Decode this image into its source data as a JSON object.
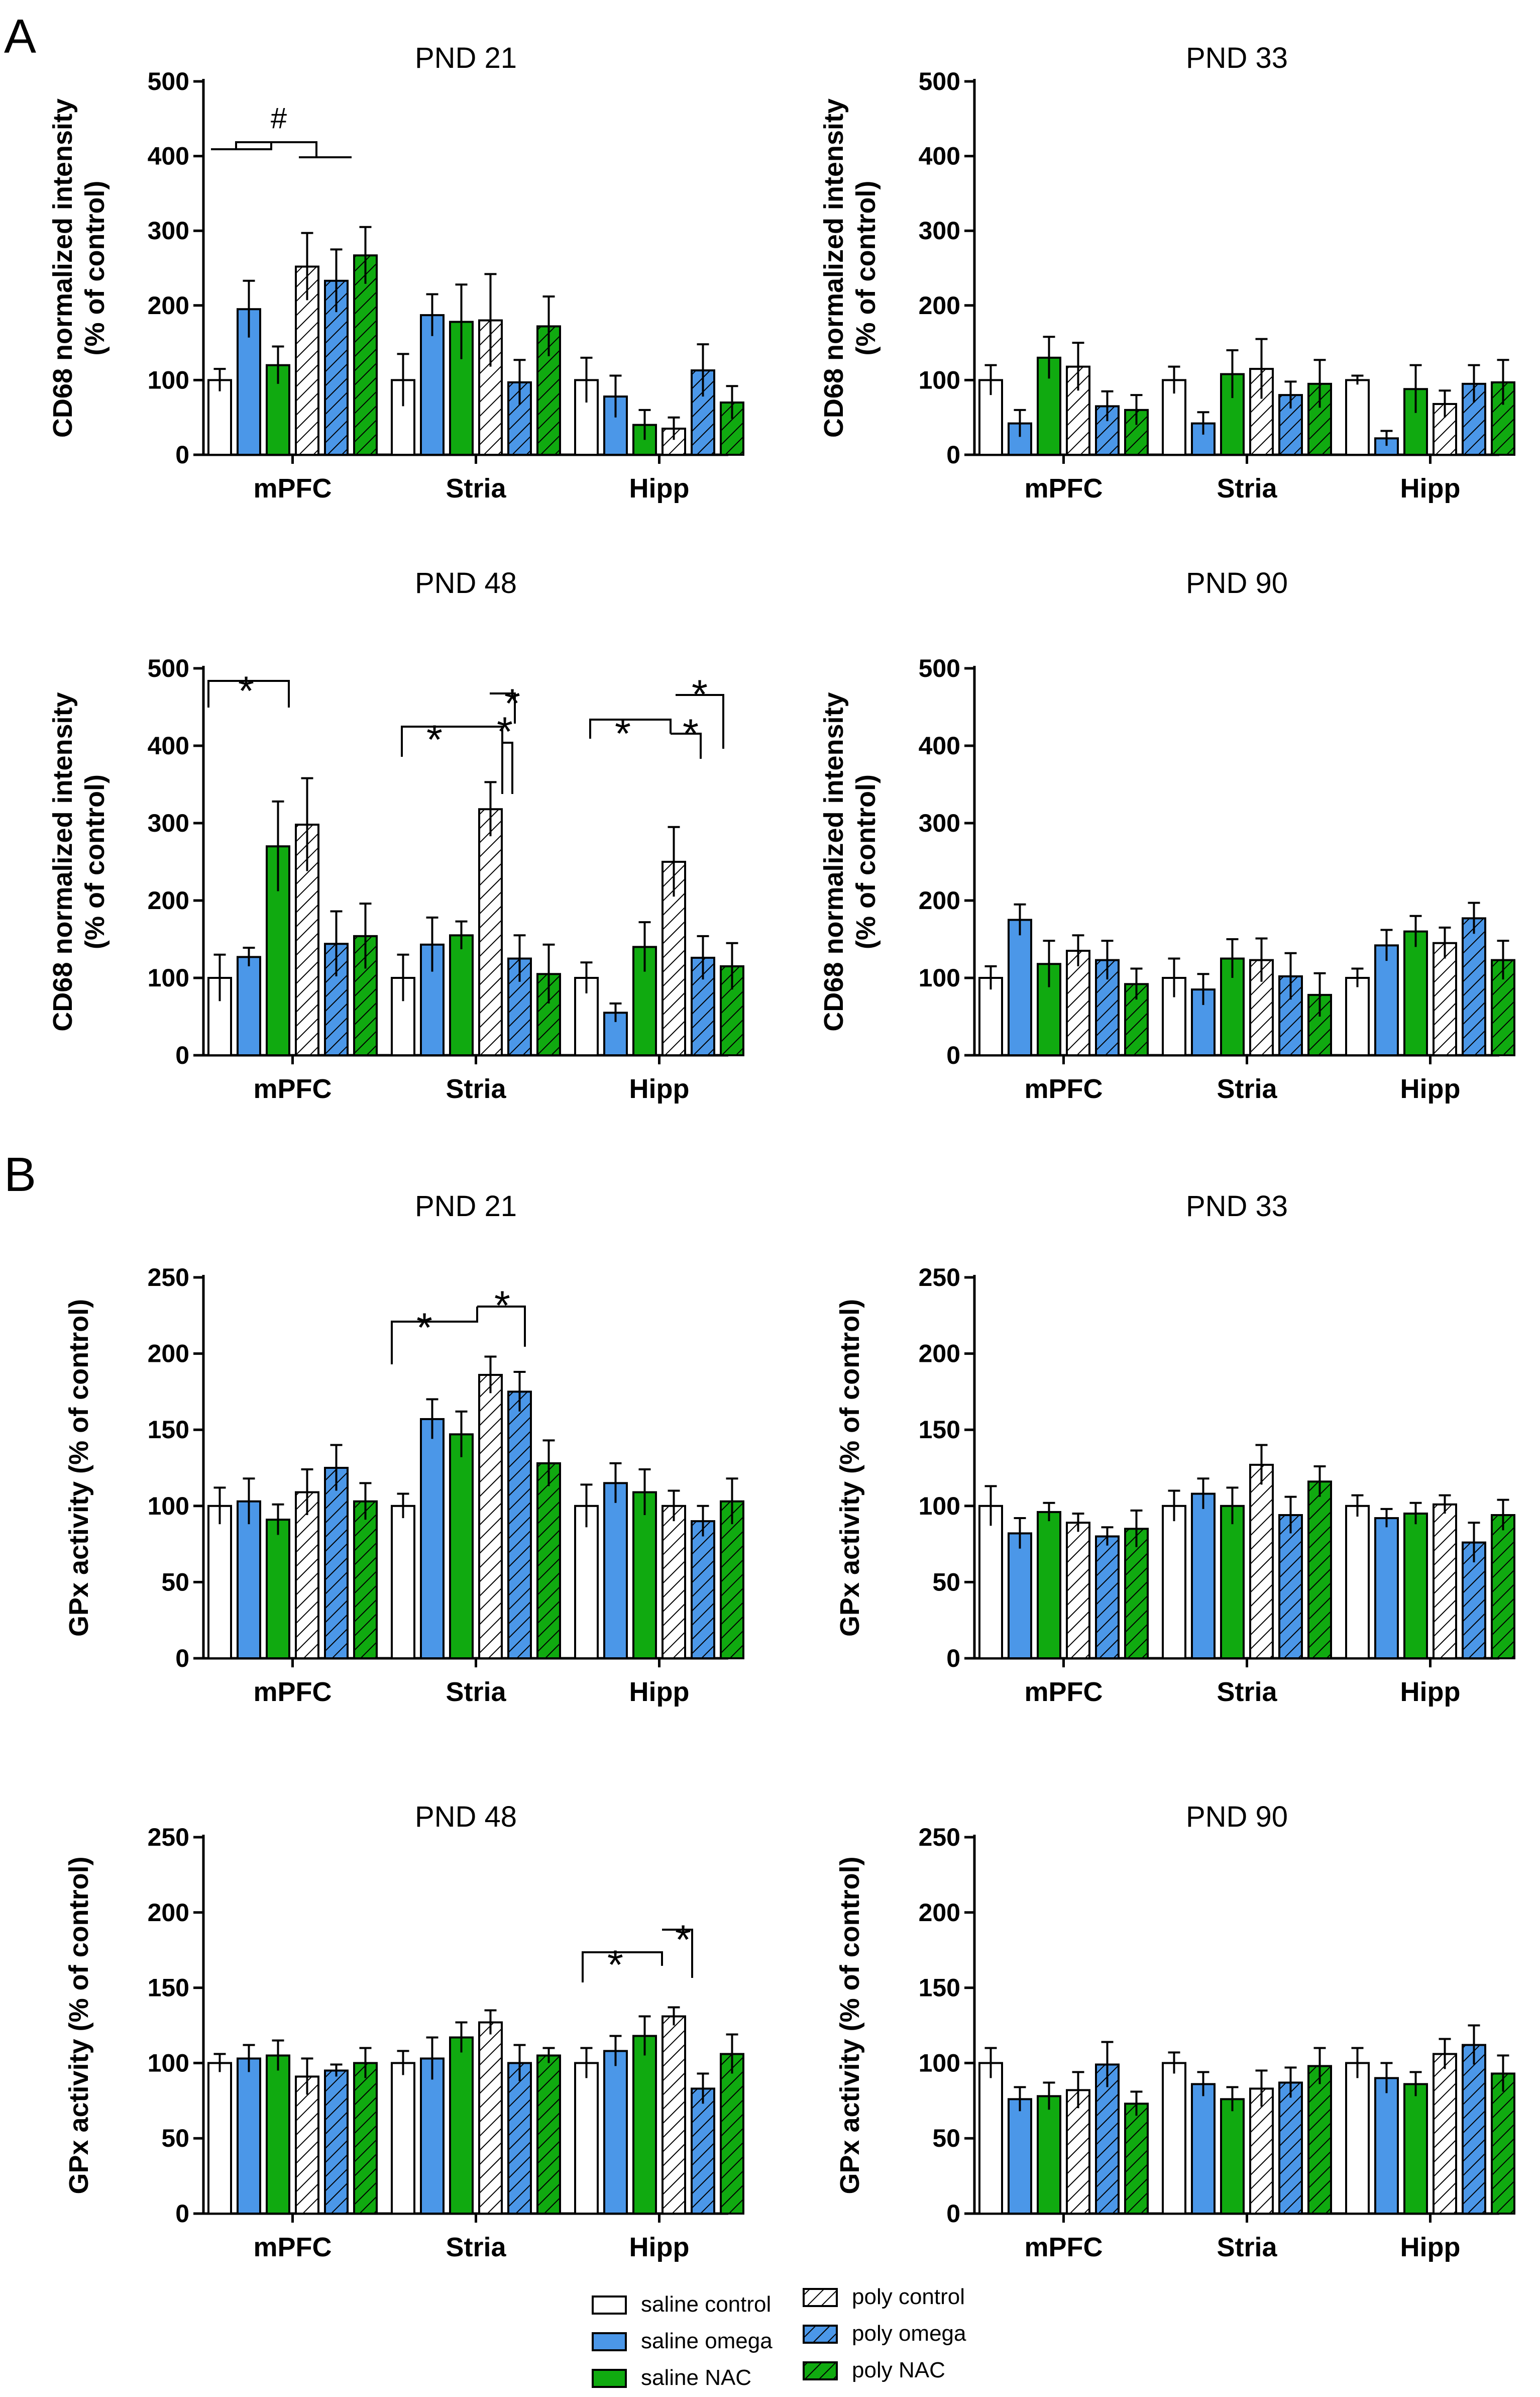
{
  "figure": {
    "panel_labels": [
      "A",
      "B"
    ],
    "legend": [
      {
        "name": "saline control",
        "fill": "#ffffff",
        "hatch": false
      },
      {
        "name": "saline omega",
        "fill": "#4b97e8",
        "hatch": false
      },
      {
        "name": "saline NAC",
        "fill": "#10aa10",
        "hatch": false
      },
      {
        "name": "poly control",
        "fill": "#ffffff",
        "hatch": true
      },
      {
        "name": "poly omega",
        "fill": "#4b97e8",
        "hatch": true
      },
      {
        "name": "poly NAC",
        "fill": "#10aa10",
        "hatch": true
      }
    ],
    "colors": {
      "blue": "#4b97e8",
      "green": "#10aa10",
      "white": "#ffffff",
      "stroke": "#000000"
    }
  },
  "chart_data": [
    {
      "type": "bar",
      "section": "A",
      "title": "PND 21",
      "ylabel": [
        "CD68 normalized intensity",
        "(% of control)"
      ],
      "ylim": [
        0,
        500
      ],
      "yticks": [
        0,
        100,
        200,
        300,
        400,
        500
      ],
      "categories": [
        "mPFC",
        "Stria",
        "Hipp"
      ],
      "series": [
        {
          "name": "saline control",
          "values": [
            100,
            100,
            100
          ],
          "errors": [
            15,
            35,
            30
          ]
        },
        {
          "name": "saline omega",
          "values": [
            195,
            187,
            78
          ],
          "errors": [
            38,
            28,
            28
          ]
        },
        {
          "name": "saline NAC",
          "values": [
            120,
            178,
            40
          ],
          "errors": [
            25,
            50,
            20
          ]
        },
        {
          "name": "poly control",
          "values": [
            252,
            180,
            35
          ],
          "errors": [
            45,
            62,
            15
          ]
        },
        {
          "name": "poly omega",
          "values": [
            233,
            97,
            113
          ],
          "errors": [
            42,
            30,
            35
          ]
        },
        {
          "name": "poly NAC",
          "values": [
            267,
            172,
            70
          ],
          "errors": [
            38,
            40,
            22
          ]
        }
      ],
      "annotations": [
        {
          "label": "#",
          "category": "mPFC"
        }
      ]
    },
    {
      "type": "bar",
      "section": "A",
      "title": "PND 33",
      "ylabel": [
        "CD68 normalized intensity",
        "(% of control)"
      ],
      "ylim": [
        0,
        500
      ],
      "yticks": [
        0,
        100,
        200,
        300,
        400,
        500
      ],
      "categories": [
        "mPFC",
        "Stria",
        "Hipp"
      ],
      "series": [
        {
          "name": "saline control",
          "values": [
            100,
            100,
            100
          ],
          "errors": [
            20,
            18,
            6
          ]
        },
        {
          "name": "saline omega",
          "values": [
            42,
            42,
            22
          ],
          "errors": [
            18,
            15,
            10
          ]
        },
        {
          "name": "saline NAC",
          "values": [
            130,
            108,
            88
          ],
          "errors": [
            28,
            32,
            32
          ]
        },
        {
          "name": "poly control",
          "values": [
            118,
            115,
            68
          ],
          "errors": [
            32,
            40,
            18
          ]
        },
        {
          "name": "poly omega",
          "values": [
            65,
            80,
            95
          ],
          "errors": [
            20,
            18,
            25
          ]
        },
        {
          "name": "poly NAC",
          "values": [
            60,
            95,
            97
          ],
          "errors": [
            20,
            32,
            30
          ]
        }
      ]
    },
    {
      "type": "bar",
      "section": "A",
      "title": "PND 48",
      "ylabel": [
        "CD68 normalized intensity",
        "(% of control)"
      ],
      "ylim": [
        0,
        500
      ],
      "yticks": [
        0,
        100,
        200,
        300,
        400,
        500
      ],
      "categories": [
        "mPFC",
        "Stria",
        "Hipp"
      ],
      "series": [
        {
          "name": "saline control",
          "values": [
            100,
            100,
            100
          ],
          "errors": [
            30,
            30,
            20
          ]
        },
        {
          "name": "saline omega",
          "values": [
            127,
            143,
            55
          ],
          "errors": [
            12,
            35,
            12
          ]
        },
        {
          "name": "saline NAC",
          "values": [
            270,
            155,
            140
          ],
          "errors": [
            58,
            18,
            32
          ]
        },
        {
          "name": "poly control",
          "values": [
            298,
            318,
            250
          ],
          "errors": [
            60,
            35,
            45
          ]
        },
        {
          "name": "poly omega",
          "values": [
            144,
            125,
            126
          ],
          "errors": [
            42,
            30,
            28
          ]
        },
        {
          "name": "poly NAC",
          "values": [
            154,
            105,
            115
          ],
          "errors": [
            42,
            38,
            30
          ]
        }
      ],
      "annotations": [
        {
          "label": "*",
          "category": "mPFC"
        },
        {
          "label": "*",
          "category": "Stria"
        },
        {
          "label": "*",
          "category": "Stria"
        },
        {
          "label": "*",
          "category": "Stria"
        },
        {
          "label": "*",
          "category": "Hipp"
        },
        {
          "label": "*",
          "category": "Hipp"
        },
        {
          "label": "*",
          "category": "Hipp"
        }
      ]
    },
    {
      "type": "bar",
      "section": "A",
      "title": "PND 90",
      "ylabel": [
        "CD68 normalized intensity",
        "(% of control)"
      ],
      "ylim": [
        0,
        500
      ],
      "yticks": [
        0,
        100,
        200,
        300,
        400,
        500
      ],
      "categories": [
        "mPFC",
        "Stria",
        "Hipp"
      ],
      "series": [
        {
          "name": "saline control",
          "values": [
            100,
            100,
            100
          ],
          "errors": [
            15,
            25,
            12
          ]
        },
        {
          "name": "saline omega",
          "values": [
            175,
            85,
            142
          ],
          "errors": [
            20,
            20,
            20
          ]
        },
        {
          "name": "saline NAC",
          "values": [
            118,
            125,
            160
          ],
          "errors": [
            30,
            25,
            20
          ]
        },
        {
          "name": "poly control",
          "values": [
            135,
            123,
            145
          ],
          "errors": [
            20,
            28,
            20
          ]
        },
        {
          "name": "poly omega",
          "values": [
            123,
            102,
            177
          ],
          "errors": [
            25,
            30,
            20
          ]
        },
        {
          "name": "poly NAC",
          "values": [
            92,
            78,
            123
          ],
          "errors": [
            20,
            28,
            25
          ]
        }
      ]
    },
    {
      "type": "bar",
      "section": "B",
      "title": "PND 21",
      "ylabel": [
        "GPx activity  (% of control)"
      ],
      "ylim": [
        0,
        250
      ],
      "yticks": [
        0,
        50,
        100,
        150,
        200,
        250
      ],
      "categories": [
        "mPFC",
        "Stria",
        "Hipp"
      ],
      "series": [
        {
          "name": "saline control",
          "values": [
            100,
            100,
            100
          ],
          "errors": [
            12,
            8,
            14
          ]
        },
        {
          "name": "saline omega",
          "values": [
            103,
            157,
            115
          ],
          "errors": [
            15,
            13,
            13
          ]
        },
        {
          "name": "saline NAC",
          "values": [
            91,
            147,
            109
          ],
          "errors": [
            10,
            15,
            15
          ]
        },
        {
          "name": "poly control",
          "values": [
            109,
            186,
            100
          ],
          "errors": [
            15,
            12,
            10
          ]
        },
        {
          "name": "poly omega",
          "values": [
            125,
            175,
            90
          ],
          "errors": [
            15,
            13,
            10
          ]
        },
        {
          "name": "poly NAC",
          "values": [
            103,
            128,
            103
          ],
          "errors": [
            12,
            15,
            15
          ]
        }
      ],
      "annotations": [
        {
          "label": "*",
          "category": "Stria"
        },
        {
          "label": "*",
          "category": "Stria"
        }
      ]
    },
    {
      "type": "bar",
      "section": "B",
      "title": "PND 33",
      "ylabel": [
        "GPx activity  (% of control)"
      ],
      "ylim": [
        0,
        250
      ],
      "yticks": [
        0,
        50,
        100,
        150,
        200,
        250
      ],
      "categories": [
        "mPFC",
        "Stria",
        "Hipp"
      ],
      "series": [
        {
          "name": "saline control",
          "values": [
            100,
            100,
            100
          ],
          "errors": [
            13,
            10,
            7
          ]
        },
        {
          "name": "saline omega",
          "values": [
            82,
            108,
            92
          ],
          "errors": [
            10,
            10,
            6
          ]
        },
        {
          "name": "saline NAC",
          "values": [
            96,
            100,
            95
          ],
          "errors": [
            6,
            12,
            7
          ]
        },
        {
          "name": "poly control",
          "values": [
            89,
            127,
            101
          ],
          "errors": [
            6,
            13,
            6
          ]
        },
        {
          "name": "poly omega",
          "values": [
            80,
            94,
            76
          ],
          "errors": [
            6,
            12,
            13
          ]
        },
        {
          "name": "poly NAC",
          "values": [
            85,
            116,
            94
          ],
          "errors": [
            12,
            10,
            10
          ]
        }
      ]
    },
    {
      "type": "bar",
      "section": "B",
      "title": "PND 48",
      "ylabel": [
        "GPx activity  (% of control)"
      ],
      "ylim": [
        0,
        250
      ],
      "yticks": [
        0,
        50,
        100,
        150,
        200,
        250
      ],
      "categories": [
        "mPFC",
        "Stria",
        "Hipp"
      ],
      "series": [
        {
          "name": "saline control",
          "values": [
            100,
            100,
            100
          ],
          "errors": [
            6,
            8,
            10
          ]
        },
        {
          "name": "saline omega",
          "values": [
            103,
            103,
            108
          ],
          "errors": [
            9,
            14,
            10
          ]
        },
        {
          "name": "saline NAC",
          "values": [
            105,
            117,
            118
          ],
          "errors": [
            10,
            10,
            13
          ]
        },
        {
          "name": "poly control",
          "values": [
            91,
            127,
            131
          ],
          "errors": [
            12,
            8,
            6
          ]
        },
        {
          "name": "poly omega",
          "values": [
            95,
            100,
            83
          ],
          "errors": [
            4,
            12,
            10
          ]
        },
        {
          "name": "poly NAC",
          "values": [
            100,
            105,
            106
          ],
          "errors": [
            10,
            5,
            13
          ]
        }
      ],
      "annotations": [
        {
          "label": "*",
          "category": "Hipp"
        },
        {
          "label": "*",
          "category": "Hipp"
        }
      ]
    },
    {
      "type": "bar",
      "section": "B",
      "title": "PND 90",
      "ylabel": [
        "GPx activity  (% of control)"
      ],
      "ylim": [
        0,
        250
      ],
      "yticks": [
        0,
        50,
        100,
        150,
        200,
        250
      ],
      "categories": [
        "mPFC",
        "Stria",
        "Hipp"
      ],
      "series": [
        {
          "name": "saline control",
          "values": [
            100,
            100,
            100
          ],
          "errors": [
            10,
            7,
            10
          ]
        },
        {
          "name": "saline omega",
          "values": [
            76,
            86,
            90
          ],
          "errors": [
            8,
            8,
            10
          ]
        },
        {
          "name": "saline NAC",
          "values": [
            78,
            76,
            86
          ],
          "errors": [
            9,
            8,
            8
          ]
        },
        {
          "name": "poly control",
          "values": [
            82,
            83,
            106
          ],
          "errors": [
            12,
            12,
            10
          ]
        },
        {
          "name": "poly omega",
          "values": [
            99,
            87,
            112
          ],
          "errors": [
            15,
            10,
            13
          ]
        },
        {
          "name": "poly NAC",
          "values": [
            73,
            98,
            93
          ],
          "errors": [
            8,
            12,
            12
          ]
        }
      ]
    }
  ]
}
